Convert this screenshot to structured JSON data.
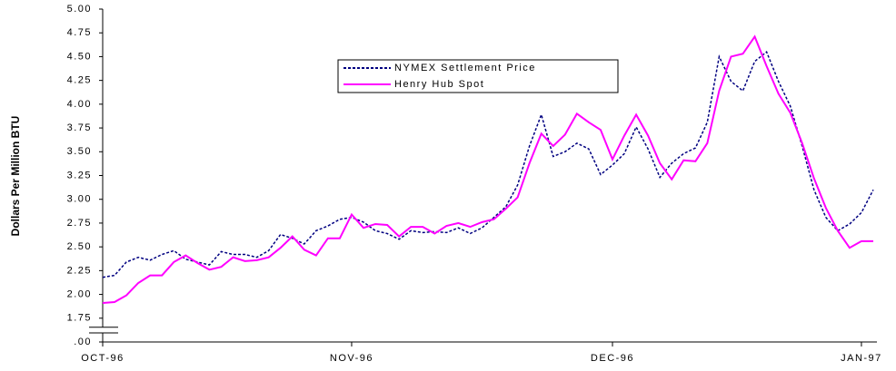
{
  "chart_data": {
    "type": "line",
    "y_label": "Dollars Per Million BTU",
    "categories": [
      "OCT-96",
      null,
      null,
      null,
      null,
      null,
      null,
      null,
      null,
      null,
      null,
      null,
      null,
      null,
      null,
      null,
      null,
      null,
      null,
      null,
      null,
      "NOV-96",
      null,
      null,
      null,
      null,
      null,
      null,
      null,
      null,
      null,
      null,
      null,
      null,
      null,
      null,
      null,
      null,
      null,
      null,
      null,
      null,
      null,
      "DEC-96",
      null,
      null,
      null,
      null,
      null,
      null,
      null,
      null,
      null,
      null,
      null,
      null,
      null,
      null,
      null,
      null,
      null,
      null,
      null,
      null,
      "JAN-97",
      null
    ],
    "series": [
      {
        "name": "NYMEX Settlement Price",
        "color": "#000080",
        "dash": "dotted",
        "values": [
          2.18,
          2.2,
          2.34,
          2.39,
          2.36,
          2.42,
          2.46,
          2.37,
          2.34,
          2.31,
          2.45,
          2.42,
          2.42,
          2.39,
          2.46,
          2.63,
          2.59,
          2.53,
          2.67,
          2.72,
          2.79,
          2.81,
          2.76,
          2.67,
          2.64,
          2.58,
          2.67,
          2.65,
          2.66,
          2.65,
          2.7,
          2.64,
          2.7,
          2.81,
          2.92,
          3.15,
          3.56,
          3.89,
          3.45,
          3.5,
          3.59,
          3.53,
          3.26,
          3.36,
          3.48,
          3.76,
          3.53,
          3.23,
          3.38,
          3.48,
          3.54,
          3.81,
          4.5,
          4.24,
          4.14,
          4.45,
          4.55,
          4.24,
          3.98,
          3.56,
          3.1,
          2.81,
          2.67,
          2.74,
          2.86,
          3.1
        ]
      },
      {
        "name": "Henry Hub Spot",
        "color": "#ff00ff",
        "dash": "solid",
        "values": [
          1.91,
          1.92,
          1.99,
          2.12,
          2.2,
          2.2,
          2.34,
          2.41,
          2.33,
          2.26,
          2.29,
          2.39,
          2.35,
          2.36,
          2.39,
          2.49,
          2.61,
          2.47,
          2.41,
          2.59,
          2.59,
          2.84,
          2.7,
          2.74,
          2.73,
          2.61,
          2.71,
          2.71,
          2.64,
          2.72,
          2.75,
          2.71,
          2.76,
          2.79,
          2.9,
          3.02,
          3.38,
          3.69,
          3.56,
          3.68,
          3.9,
          3.81,
          3.73,
          3.42,
          3.67,
          3.89,
          3.67,
          3.38,
          3.21,
          3.41,
          3.4,
          3.59,
          4.14,
          4.5,
          4.53,
          4.71,
          4.4,
          4.11,
          3.91,
          3.59,
          3.22,
          2.91,
          2.67,
          2.49,
          2.56,
          2.56
        ]
      }
    ],
    "ylim": [
      0,
      5
    ],
    "y_axis_break": true,
    "yticks": [
      {
        "value": 0,
        "label": ".00"
      },
      1.75,
      {
        "value": 2,
        "label": "2.00"
      },
      2.25,
      {
        "value": 2.5,
        "label": "2.50"
      },
      2.75,
      {
        "value": 3,
        "label": "3.00"
      },
      3.25,
      {
        "value": 3.5,
        "label": "3.50"
      },
      3.75,
      {
        "value": 4,
        "label": "4.00"
      },
      4.25,
      {
        "value": 4.5,
        "label": "4.50"
      },
      4.75,
      {
        "value": 5,
        "label": "5.00"
      }
    ],
    "grid": false,
    "legend": "top-center"
  }
}
